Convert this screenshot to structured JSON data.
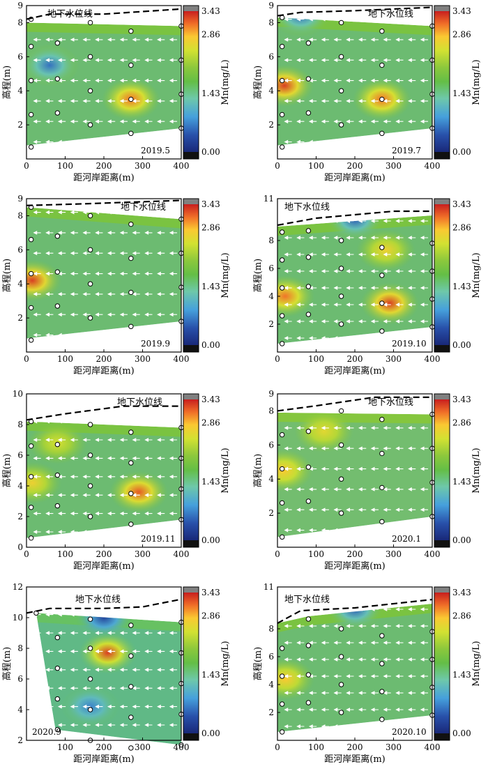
{
  "figure": {
    "xlabel": "距河岸距离(m)",
    "ylabel": "高程(m)",
    "colorbar_label": "Mn(mg/L)",
    "groundwater_label": "地下水位线",
    "colorbar_ticks": [
      "3.43",
      "2.86",
      "1.43",
      "0.00"
    ]
  },
  "chart_data": [
    {
      "type": "contour",
      "date_label": "2019.5",
      "xlim": [
        0,
        400
      ],
      "ylim": [
        0,
        9
      ],
      "x_ticks": [
        "0",
        "100",
        "200",
        "300",
        "400"
      ],
      "y_ticks": [
        "2",
        "4",
        "6",
        "8"
      ],
      "y_top_label": "9",
      "groundwater_line": [
        [
          0,
          8.2
        ],
        [
          60,
          8.5
        ],
        [
          200,
          8.5
        ],
        [
          400,
          8.8
        ]
      ],
      "domain": {
        "top": [
          [
            0,
            8.0
          ],
          [
            400,
            7.8
          ]
        ],
        "bottom": [
          [
            0,
            0.8
          ],
          [
            400,
            1.8
          ]
        ]
      },
      "wells": [
        [
          12,
          0.7
        ],
        [
          12,
          2.6
        ],
        [
          12,
          4.6
        ],
        [
          12,
          6.6
        ],
        [
          12,
          8.2
        ],
        [
          80,
          2.7
        ],
        [
          80,
          4.7
        ],
        [
          80,
          6.8
        ],
        [
          165,
          2.0
        ],
        [
          165,
          4.0
        ],
        [
          165,
          6.0
        ],
        [
          165,
          8.0
        ],
        [
          270,
          1.5
        ],
        [
          270,
          3.5
        ],
        [
          270,
          5.5
        ],
        [
          270,
          7.5
        ],
        [
          400,
          1.8
        ],
        [
          400,
          3.8
        ],
        [
          400,
          5.8
        ],
        [
          400,
          7.8
        ]
      ],
      "mn_hotspots": [
        {
          "x": 270,
          "y": 3.5,
          "mn": 3.1
        },
        {
          "x": 60,
          "y": 5.5,
          "mn": 0.6
        }
      ],
      "mn_background": 1.9
    },
    {
      "type": "contour",
      "date_label": "2019.7",
      "xlim": [
        0,
        400
      ],
      "ylim": [
        0,
        9
      ],
      "x_ticks": [
        "0",
        "100",
        "200",
        "300",
        "400"
      ],
      "y_ticks": [
        "2",
        "4",
        "6",
        "8"
      ],
      "y_top_label": "9",
      "groundwater_line": [
        [
          0,
          8.4
        ],
        [
          60,
          8.6
        ],
        [
          200,
          8.7
        ],
        [
          400,
          8.9
        ]
      ],
      "domain": {
        "top": [
          [
            0,
            8.3
          ],
          [
            400,
            7.8
          ]
        ],
        "bottom": [
          [
            0,
            0.8
          ],
          [
            400,
            1.8
          ]
        ]
      },
      "wells": [
        [
          12,
          0.7
        ],
        [
          12,
          2.6
        ],
        [
          12,
          4.6
        ],
        [
          12,
          6.6
        ],
        [
          12,
          8.3
        ],
        [
          80,
          2.7
        ],
        [
          80,
          4.7
        ],
        [
          80,
          6.8
        ],
        [
          165,
          2.0
        ],
        [
          165,
          4.0
        ],
        [
          165,
          6.0
        ],
        [
          165,
          8.0
        ],
        [
          270,
          1.5
        ],
        [
          270,
          3.5
        ],
        [
          270,
          5.5
        ],
        [
          270,
          7.5
        ],
        [
          400,
          1.8
        ],
        [
          400,
          3.8
        ],
        [
          400,
          5.8
        ],
        [
          400,
          7.8
        ]
      ],
      "mn_hotspots": [
        {
          "x": 18,
          "y": 4.3,
          "mn": 3.3
        },
        {
          "x": 270,
          "y": 3.5,
          "mn": 3.1
        },
        {
          "x": 60,
          "y": 8.4,
          "mn": 0.6
        }
      ],
      "mn_background": 1.9
    },
    {
      "type": "contour",
      "date_label": "2019.9",
      "xlim": [
        0,
        400
      ],
      "ylim": [
        0,
        9
      ],
      "x_ticks": [
        "0",
        "100",
        "200",
        "300",
        "400"
      ],
      "y_ticks": [
        "2",
        "4",
        "6",
        "8"
      ],
      "y_top_label": "9",
      "groundwater_line": [
        [
          0,
          8.6
        ],
        [
          150,
          8.7
        ],
        [
          400,
          8.9
        ]
      ],
      "domain": {
        "top": [
          [
            0,
            8.5
          ],
          [
            400,
            7.8
          ]
        ],
        "bottom": [
          [
            0,
            0.8
          ],
          [
            400,
            1.8
          ]
        ]
      },
      "wells": [
        [
          12,
          0.7
        ],
        [
          12,
          2.6
        ],
        [
          12,
          4.6
        ],
        [
          12,
          6.6
        ],
        [
          12,
          8.5
        ],
        [
          80,
          2.7
        ],
        [
          80,
          4.7
        ],
        [
          80,
          6.8
        ],
        [
          165,
          2.0
        ],
        [
          165,
          4.0
        ],
        [
          165,
          6.0
        ],
        [
          165,
          8.0
        ],
        [
          270,
          1.5
        ],
        [
          270,
          3.5
        ],
        [
          270,
          5.5
        ],
        [
          270,
          7.5
        ],
        [
          400,
          1.8
        ],
        [
          400,
          3.8
        ],
        [
          400,
          5.8
        ],
        [
          400,
          7.8
        ]
      ],
      "mn_hotspots": [
        {
          "x": 15,
          "y": 4.2,
          "mn": 3.3
        }
      ],
      "mn_background": 1.9
    },
    {
      "type": "contour",
      "date_label": "2019.10",
      "xlim": [
        0,
        400
      ],
      "ylim": [
        0,
        11
      ],
      "x_ticks": [
        "0",
        "100",
        "200",
        "300",
        "400"
      ],
      "y_ticks": [
        "2",
        "4",
        "6",
        "8"
      ],
      "y_top_label": "11",
      "groundwater_line": [
        [
          0,
          9.1
        ],
        [
          100,
          9.6
        ],
        [
          300,
          10.1
        ],
        [
          400,
          10.1
        ]
      ],
      "domain": {
        "top": [
          [
            0,
            9.0
          ],
          [
            400,
            9.8
          ]
        ],
        "bottom": [
          [
            0,
            0.6
          ],
          [
            400,
            1.8
          ]
        ]
      },
      "wells": [
        [
          12,
          0.6
        ],
        [
          12,
          2.6
        ],
        [
          12,
          4.6
        ],
        [
          12,
          6.6
        ],
        [
          12,
          8.6
        ],
        [
          80,
          2.7
        ],
        [
          80,
          4.7
        ],
        [
          80,
          6.8
        ],
        [
          80,
          8.7
        ],
        [
          165,
          2.0
        ],
        [
          165,
          4.0
        ],
        [
          165,
          6.0
        ],
        [
          165,
          8.0
        ],
        [
          270,
          1.5
        ],
        [
          270,
          3.5
        ],
        [
          270,
          5.5
        ],
        [
          270,
          7.5
        ],
        [
          400,
          1.8
        ],
        [
          400,
          3.8
        ],
        [
          400,
          5.8
        ],
        [
          400,
          7.8
        ]
      ],
      "mn_hotspots": [
        {
          "x": 20,
          "y": 4.0,
          "mn": 3.1
        },
        {
          "x": 290,
          "y": 3.5,
          "mn": 3.3
        },
        {
          "x": 280,
          "y": 7.3,
          "mn": 2.7
        },
        {
          "x": 200,
          "y": 9.5,
          "mn": 0.5
        }
      ],
      "mn_background": 1.9
    },
    {
      "type": "contour",
      "date_label": "2019.11",
      "xlim": [
        0,
        400
      ],
      "ylim": [
        0,
        10
      ],
      "x_ticks": [
        "0",
        "100",
        "200",
        "300",
        "400"
      ],
      "y_ticks": [
        "0",
        "2",
        "4",
        "6",
        "8"
      ],
      "y_top_label": "10",
      "groundwater_line": [
        [
          0,
          8.3
        ],
        [
          100,
          8.7
        ],
        [
          250,
          9.2
        ],
        [
          400,
          9.2
        ]
      ],
      "domain": {
        "top": [
          [
            0,
            8.2
          ],
          [
            400,
            7.8
          ]
        ],
        "bottom": [
          [
            0,
            0.6
          ],
          [
            400,
            1.8
          ]
        ]
      },
      "wells": [
        [
          12,
          0.6
        ],
        [
          12,
          2.6
        ],
        [
          12,
          4.6
        ],
        [
          12,
          6.6
        ],
        [
          12,
          8.2
        ],
        [
          80,
          2.7
        ],
        [
          80,
          4.7
        ],
        [
          80,
          6.7
        ],
        [
          165,
          2.0
        ],
        [
          165,
          4.0
        ],
        [
          165,
          6.0
        ],
        [
          165,
          8.0
        ],
        [
          270,
          1.5
        ],
        [
          270,
          3.5
        ],
        [
          270,
          5.5
        ],
        [
          270,
          7.5
        ],
        [
          400,
          1.8
        ],
        [
          400,
          3.8
        ],
        [
          400,
          5.8
        ],
        [
          400,
          7.8
        ]
      ],
      "mn_hotspots": [
        {
          "x": 290,
          "y": 3.6,
          "mn": 3.2
        },
        {
          "x": 15,
          "y": 4.2,
          "mn": 2.7
        },
        {
          "x": 80,
          "y": 6.8,
          "mn": 2.5
        }
      ],
      "mn_background": 1.9
    },
    {
      "type": "contour",
      "date_label": "2020.1",
      "xlim": [
        0,
        400
      ],
      "ylim": [
        0,
        9
      ],
      "x_ticks": [
        "0",
        "100",
        "200",
        "300",
        "400"
      ],
      "y_ticks": [
        "2",
        "4",
        "6",
        "8"
      ],
      "y_top_label": "9",
      "groundwater_line": [
        [
          0,
          8.0
        ],
        [
          100,
          8.3
        ],
        [
          250,
          8.8
        ],
        [
          400,
          8.8
        ]
      ],
      "domain": {
        "top": [
          [
            0,
            7.9
          ],
          [
            400,
            7.8
          ]
        ],
        "bottom": [
          [
            0,
            0.6
          ],
          [
            400,
            1.8
          ]
        ]
      },
      "wells": [
        [
          12,
          0.6
        ],
        [
          12,
          2.6
        ],
        [
          12,
          4.6
        ],
        [
          12,
          6.6
        ],
        [
          80,
          2.7
        ],
        [
          80,
          4.7
        ],
        [
          80,
          6.8
        ],
        [
          165,
          2.0
        ],
        [
          165,
          4.0
        ],
        [
          165,
          6.0
        ],
        [
          165,
          8.0
        ],
        [
          270,
          1.5
        ],
        [
          270,
          3.5
        ],
        [
          270,
          5.5
        ],
        [
          270,
          7.5
        ],
        [
          400,
          1.8
        ],
        [
          400,
          3.8
        ],
        [
          400,
          5.8
        ],
        [
          400,
          7.8
        ]
      ],
      "mn_hotspots": [
        {
          "x": 15,
          "y": 4.5,
          "mn": 2.8
        },
        {
          "x": 120,
          "y": 6.8,
          "mn": 2.6
        }
      ],
      "mn_background": 2.0
    },
    {
      "type": "contour",
      "date_label": "2020.9",
      "xlim": [
        0,
        400
      ],
      "ylim": [
        2,
        12
      ],
      "x_ticks": [
        "100",
        "200",
        "300",
        "400"
      ],
      "y_ticks": [
        "2",
        "4",
        "6",
        "8",
        "10"
      ],
      "y_top_label": "12",
      "groundwater_line": [
        [
          0,
          10.3
        ],
        [
          60,
          10.6
        ],
        [
          200,
          10.6
        ],
        [
          300,
          10.7
        ],
        [
          400,
          11.2
        ]
      ],
      "domain": {
        "top": [
          [
            25,
            10.3
          ],
          [
            400,
            9.7
          ]
        ],
        "bottom": [
          [
            75,
            2.7
          ],
          [
            400,
            1.7
          ]
        ]
      },
      "wells": [
        [
          25,
          10.3
        ],
        [
          80,
          2.7
        ],
        [
          80,
          4.7
        ],
        [
          80,
          6.7
        ],
        [
          80,
          8.7
        ],
        [
          165,
          2.0
        ],
        [
          165,
          4.0
        ],
        [
          165,
          6.0
        ],
        [
          165,
          8.0
        ],
        [
          165,
          9.9
        ],
        [
          270,
          1.5
        ],
        [
          270,
          3.5
        ],
        [
          270,
          5.5
        ],
        [
          270,
          7.5
        ],
        [
          270,
          9.5
        ],
        [
          400,
          1.7
        ],
        [
          400,
          3.7
        ],
        [
          400,
          5.7
        ],
        [
          400,
          7.7
        ],
        [
          400,
          9.7
        ]
      ],
      "mn_hotspots": [
        {
          "x": 210,
          "y": 7.7,
          "mn": 3.3
        },
        {
          "x": 165,
          "y": 4.2,
          "mn": 0.7
        },
        {
          "x": 200,
          "y": 10.0,
          "mn": 0.3
        }
      ],
      "mn_background": 1.6
    },
    {
      "type": "contour",
      "date_label": "2020.10",
      "xlim": [
        0,
        400
      ],
      "ylim": [
        0,
        11
      ],
      "x_ticks": [
        "0",
        "100",
        "200",
        "300",
        "400"
      ],
      "y_ticks": [
        "2",
        "4",
        "6",
        "8"
      ],
      "y_top_label": "11",
      "groundwater_line": [
        [
          0,
          8.4
        ],
        [
          60,
          9.3
        ],
        [
          200,
          9.5
        ],
        [
          400,
          10.1
        ]
      ],
      "domain": {
        "top": [
          [
            0,
            8.4
          ],
          [
            80,
            8.9
          ],
          [
            400,
            9.8
          ]
        ],
        "bottom": [
          [
            0,
            0.6
          ],
          [
            400,
            1.8
          ]
        ]
      },
      "wells": [
        [
          12,
          0.6
        ],
        [
          12,
          2.6
        ],
        [
          12,
          4.6
        ],
        [
          12,
          6.6
        ],
        [
          80,
          2.7
        ],
        [
          80,
          4.7
        ],
        [
          80,
          6.8
        ],
        [
          80,
          8.7
        ],
        [
          165,
          2.0
        ],
        [
          165,
          4.0
        ],
        [
          165,
          6.0
        ],
        [
          165,
          8.0
        ],
        [
          270,
          1.5
        ],
        [
          270,
          3.5
        ],
        [
          270,
          5.5
        ],
        [
          270,
          7.5
        ],
        [
          400,
          1.8
        ],
        [
          400,
          3.8
        ],
        [
          400,
          5.8
        ],
        [
          400,
          7.8
        ]
      ],
      "mn_hotspots": [
        {
          "x": 20,
          "y": 4.4,
          "mn": 2.8
        },
        {
          "x": 200,
          "y": 9.4,
          "mn": 0.5
        }
      ],
      "mn_background": 1.9
    }
  ]
}
